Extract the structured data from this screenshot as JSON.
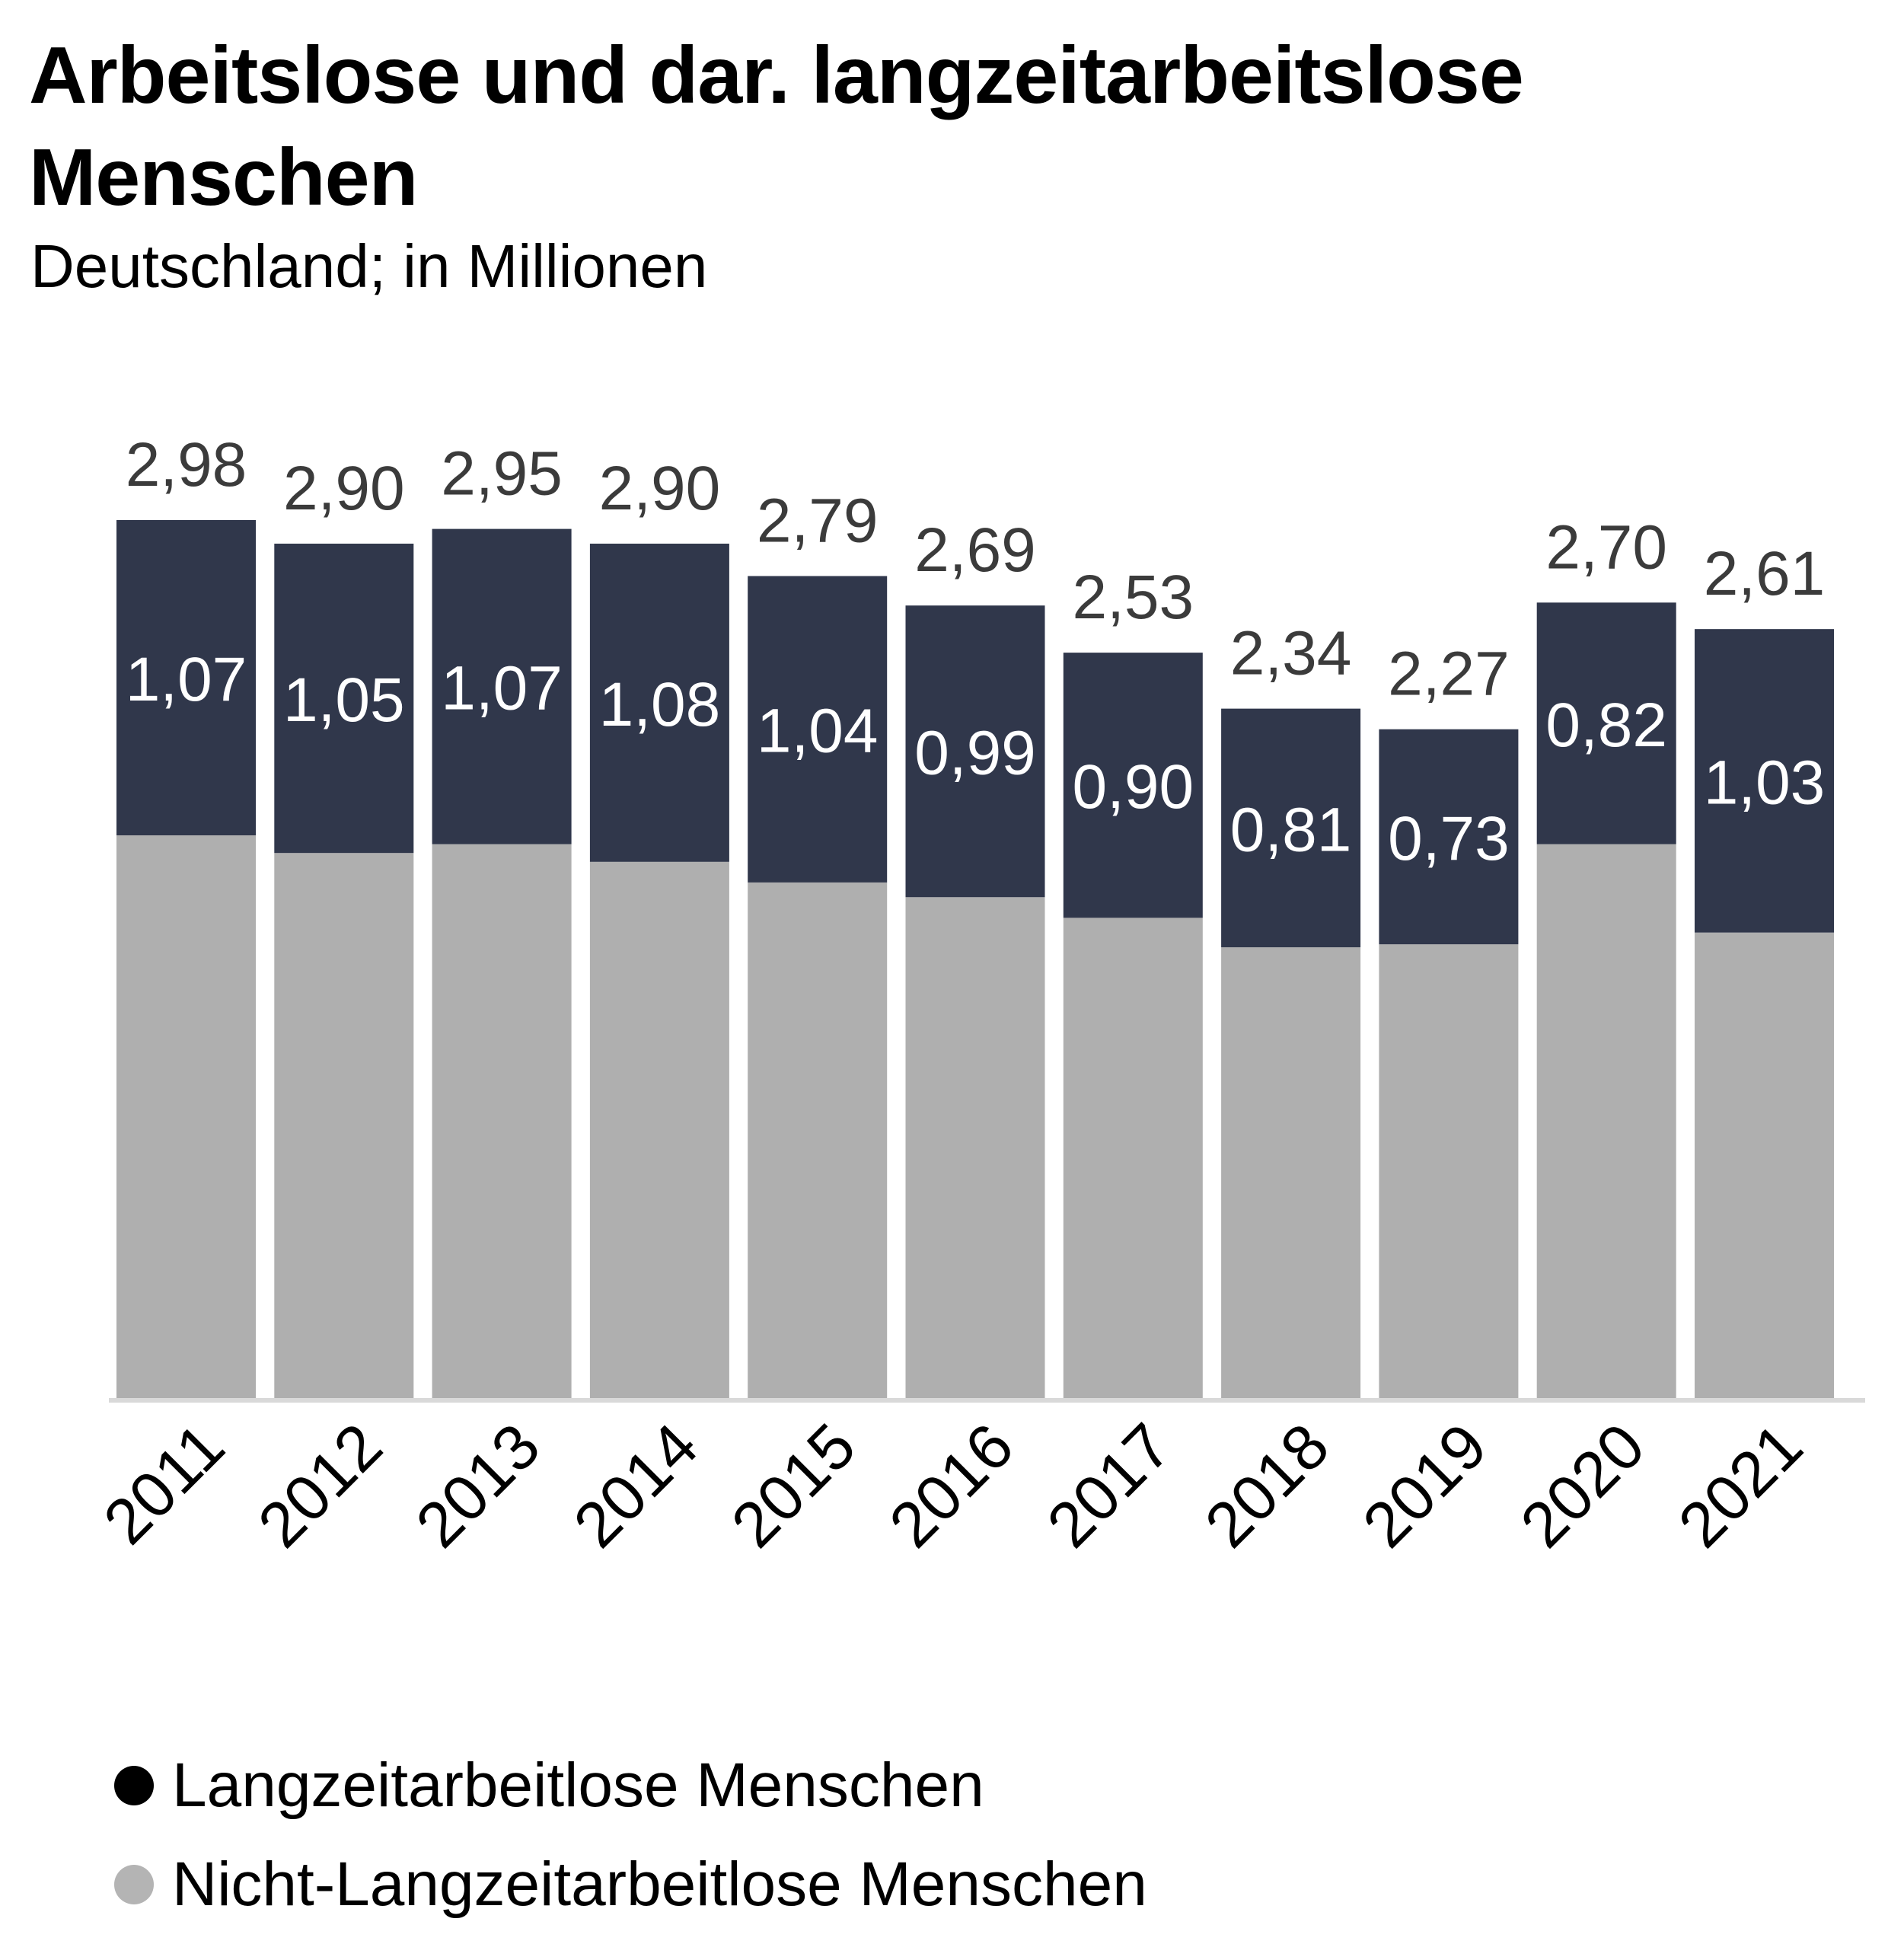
{
  "chart_data": {
    "type": "bar",
    "stacked": true,
    "title": "Arbeitslose und dar. langzeitarbeitslose Menschen",
    "subtitle": "Deutschland; in Millionen",
    "categories": [
      "2011",
      "2012",
      "2013",
      "2014",
      "2015",
      "2016",
      "2017",
      "2018",
      "2019",
      "2020",
      "2021"
    ],
    "totals": [
      2.98,
      2.9,
      2.95,
      2.9,
      2.79,
      2.69,
      2.53,
      2.34,
      2.27,
      2.7,
      2.61
    ],
    "total_labels": [
      "2,98",
      "2,90",
      "2,95",
      "2,90",
      "2,79",
      "2,69",
      "2,53",
      "2,34",
      "2,27",
      "2,70",
      "2,61"
    ],
    "series": [
      {
        "name": "Nicht-Langzeitarbeitlose Menschen",
        "color": "#afafaf",
        "values": [
          1.91,
          1.85,
          1.88,
          1.82,
          1.75,
          1.7,
          1.63,
          1.53,
          1.54,
          1.88,
          1.58
        ]
      },
      {
        "name": "Langzeitarbeitlose Menschen",
        "color": "#30374b",
        "values": [
          1.07,
          1.05,
          1.07,
          1.08,
          1.04,
          0.99,
          0.9,
          0.81,
          0.73,
          0.82,
          1.03
        ],
        "labels": [
          "1,07",
          "1,05",
          "1,07",
          "1,08",
          "1,04",
          "0,99",
          "0,90",
          "0,81",
          "0,73",
          "0,82",
          "1,03"
        ]
      }
    ],
    "ylim": [
      0,
      3.2
    ],
    "grid": false,
    "y_axis_visible": false,
    "x_tick_rotation": -45,
    "legend": {
      "position": "bottom-left",
      "items": [
        {
          "label": "Langzeitarbeitlose Menschen",
          "color": "#000000"
        },
        {
          "label": "Nicht-Langzeitarbeitlose Menschen",
          "color": "#b4b4b4"
        }
      ]
    },
    "colors": {
      "axis": "#d9d9d9",
      "total_label": "#3b3b3b",
      "inner_label": "#ffffff",
      "tick_label": "#000000"
    }
  }
}
